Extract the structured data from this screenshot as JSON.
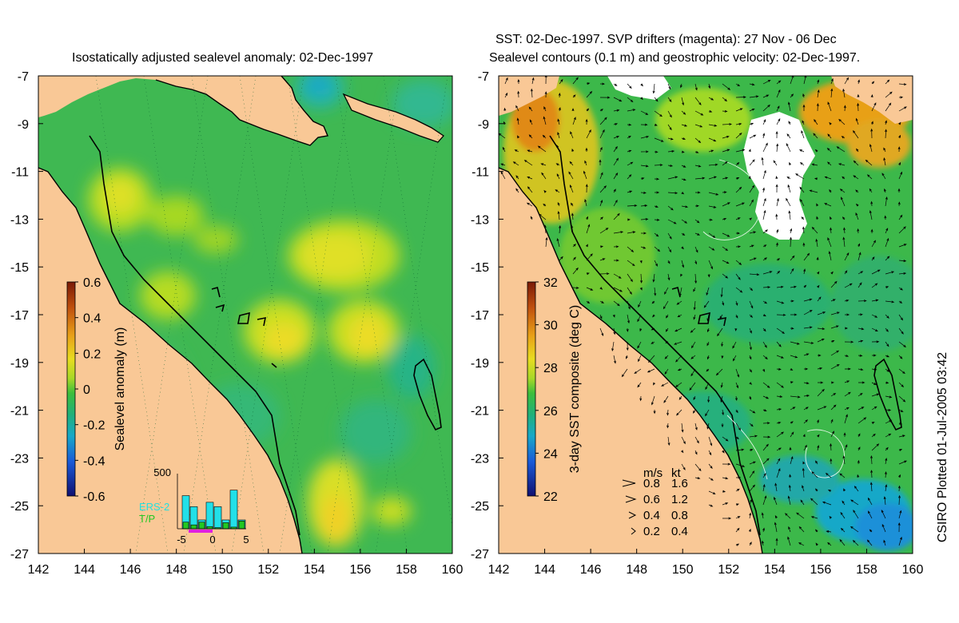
{
  "left_panel": {
    "title": "Isostatically adjusted sealevel anomaly: 02-Dec-1997",
    "colorbar": {
      "label": "Sealevel anomaly (m)",
      "ticks": [
        "0.6",
        "0.4",
        "0.2",
        "0",
        "-0.2",
        "-0.4",
        "-0.6"
      ],
      "colors": [
        "#7a1a06",
        "#b8400e",
        "#e08a10",
        "#f0c020",
        "#c8dd20",
        "#5dc83a",
        "#22b46e",
        "#18a8b8",
        "#1c6ce0",
        "#1a2aa8",
        "#101060"
      ]
    },
    "inset": {
      "ymax_label": "500",
      "legend": [
        "ERS-2",
        "T/P"
      ],
      "xticks": [
        "-5",
        "0",
        "5"
      ],
      "ers2_counts": [
        300,
        200,
        80,
        240,
        200,
        80,
        350,
        80
      ],
      "tp_counts": [
        120,
        70,
        120,
        40,
        20,
        110,
        30,
        140
      ]
    }
  },
  "right_panel": {
    "title_line1": "SST: 02-Dec-1997. SVP drifters (magenta): 27 Nov - 06 Dec",
    "title_line2": "Sealevel contours (0.1 m) and geostrophic velocity: 02-Dec-1997.",
    "colorbar": {
      "label": "3-day SST composite (deg C)",
      "ticks": [
        "32",
        "30",
        "28",
        "26",
        "24",
        "22"
      ],
      "colors": [
        "#7a1a06",
        "#b8400e",
        "#e08a10",
        "#f0c020",
        "#c8dd20",
        "#5dc83a",
        "#22b46e",
        "#18a8b8",
        "#1c6ce0",
        "#1a2aa8",
        "#101060"
      ]
    },
    "velocity_legend": {
      "header_ms": "m/s",
      "header_kt": "kt",
      "rows": [
        {
          "ms": "0.8",
          "kt": "1.6"
        },
        {
          "ms": "0.6",
          "kt": "1.2"
        },
        {
          "ms": "0.4",
          "kt": "0.8"
        },
        {
          "ms": "0.2",
          "kt": "0.4"
        }
      ]
    }
  },
  "y_ticks": [
    "-7",
    "-9",
    "-11",
    "-13",
    "-15",
    "-17",
    "-19",
    "-21",
    "-23",
    "-25",
    "-27"
  ],
  "x_ticks": [
    "142",
    "144",
    "146",
    "148",
    "150",
    "152",
    "154",
    "156",
    "158",
    "160"
  ],
  "side_note": "CSIRO Plotted 01-Jul-2005 03:42",
  "colors": {
    "land": "#f9c896",
    "ocean_base": "#3fb852",
    "coast": "#000000"
  }
}
